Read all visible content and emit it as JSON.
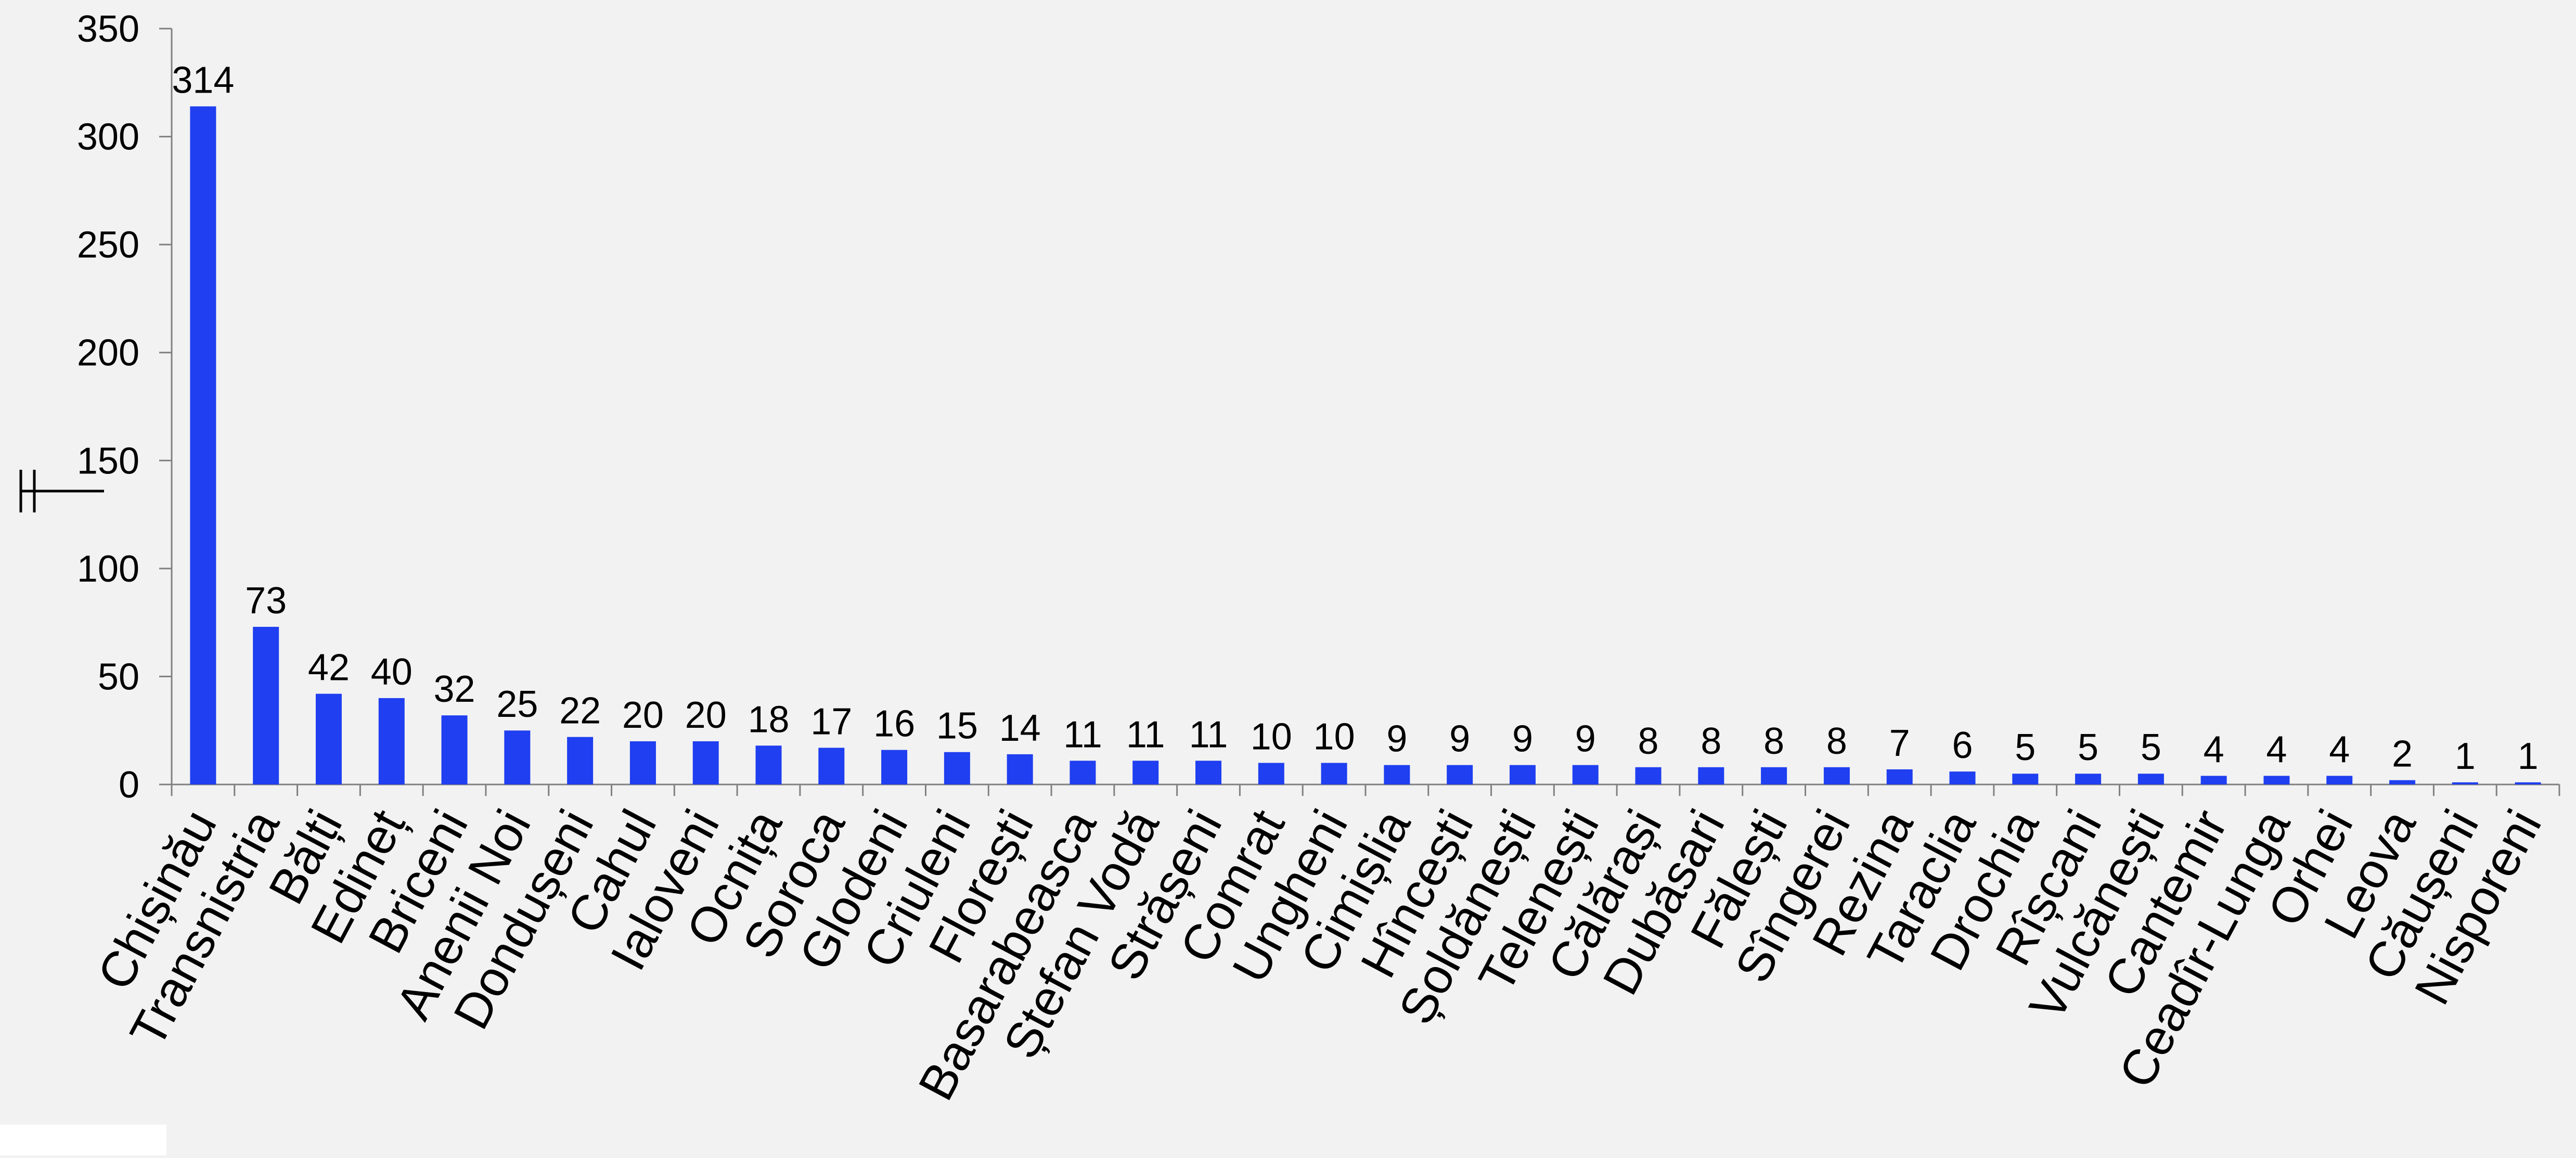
{
  "chart_data": {
    "type": "bar",
    "title": "",
    "xlabel": "",
    "ylabel": "",
    "ylim": [
      0,
      350
    ],
    "yticks": [
      0,
      50,
      100,
      150,
      200,
      250,
      300,
      350
    ],
    "grid": false,
    "legend": "none",
    "bar_color": "#1f3ff0",
    "categories": [
      "Chișinău",
      "Transnistria",
      "Bălți",
      "Edineț",
      "Briceni",
      "Anenii Noi",
      "Dondușeni",
      "Cahul",
      "Ialoveni",
      "Ocnița",
      "Soroca",
      "Glodeni",
      "Criuleni",
      "Florești",
      "Basarabeasca",
      "Ștefan Vodă",
      "Strășeni",
      "Comrat",
      "Ungheni",
      "Cimișlia",
      "Hîncești",
      "Șoldănești",
      "Telenești",
      "Călărași",
      "Dubăsari",
      "Fălești",
      "Sîngerei",
      "Rezina",
      "Taraclia",
      "Drochia",
      "Rîșcani",
      "Vulcănești",
      "Cantemir",
      "Ceadîr-Lunga",
      "Orhei",
      "Leova",
      "Căușeni",
      "Nisporeni"
    ],
    "values": [
      314,
      73,
      42,
      40,
      32,
      25,
      22,
      20,
      20,
      18,
      17,
      16,
      15,
      14,
      11,
      11,
      11,
      10,
      10,
      9,
      9,
      9,
      9,
      8,
      8,
      8,
      8,
      7,
      6,
      5,
      5,
      5,
      4,
      4,
      4,
      2,
      1,
      1
    ]
  }
}
